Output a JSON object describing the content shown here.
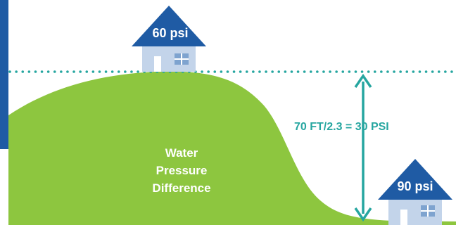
{
  "houses": {
    "top": {
      "pressure_label": "60 psi"
    },
    "bottom": {
      "pressure_label": "90 psi"
    }
  },
  "formula_label": "70 FT/2.3 = 30 PSI",
  "hill_label": {
    "lines": [
      "Water",
      "Pressure",
      "Difference"
    ]
  },
  "colors": {
    "hill": "#8dc63f",
    "accent_line": "#26a6a0",
    "house_roof": "#1f5ba4",
    "house_body": "#c3d4ea",
    "house_window": "#7ea3cf",
    "left_bar": "#1f5ba4",
    "hill_text": "#ffffff"
  }
}
